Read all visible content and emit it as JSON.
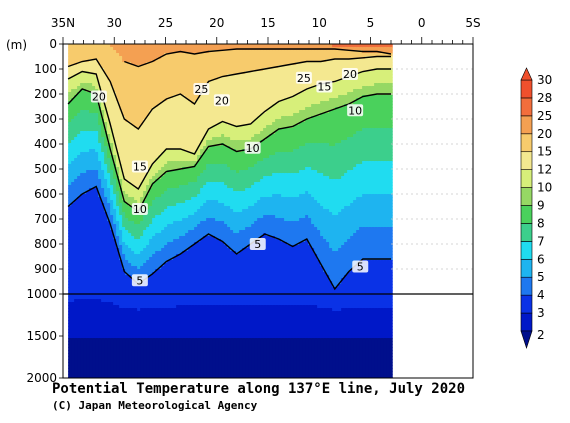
{
  "chart_data": {
    "type": "heatmap",
    "title": "Potential Temperature along 137°E line, July 2020",
    "credit": "(C) Japan Meteorological Agency",
    "ylabel": "(m)",
    "x_ticks": [
      {
        "lat": 35,
        "label": "35N"
      },
      {
        "lat": 30,
        "label": "30"
      },
      {
        "lat": 25,
        "label": "25"
      },
      {
        "lat": 20,
        "label": "20"
      },
      {
        "lat": 15,
        "label": "15"
      },
      {
        "lat": 10,
        "label": "10"
      },
      {
        "lat": 5,
        "label": "5"
      },
      {
        "lat": 0,
        "label": "0"
      },
      {
        "lat": -5,
        "label": "5S"
      }
    ],
    "y_ticks_upper": [
      {
        "depth": 0,
        "label": "0"
      },
      {
        "depth": 100,
        "label": "100"
      },
      {
        "depth": 200,
        "label": "200"
      },
      {
        "depth": 300,
        "label": "300"
      },
      {
        "depth": 400,
        "label": "400"
      },
      {
        "depth": 500,
        "label": "500"
      },
      {
        "depth": 600,
        "label": "600"
      },
      {
        "depth": 700,
        "label": "700"
      },
      {
        "depth": 800,
        "label": "800"
      },
      {
        "depth": 900,
        "label": "900"
      },
      {
        "depth": 1000,
        "label": "1000"
      }
    ],
    "y_ticks_lower": [
      {
        "depth": 1500,
        "label": "1500"
      },
      {
        "depth": 2000,
        "label": "2000"
      }
    ],
    "xlim": [
      35,
      -5
    ],
    "ylim": [
      2000,
      0
    ],
    "data_lat_range": [
      34.5,
      3
    ],
    "colorbar": {
      "levels": [
        2,
        3,
        4,
        5,
        6,
        7,
        8,
        9,
        10,
        12,
        15,
        20,
        25,
        28,
        30
      ],
      "labels": [
        "2",
        "3",
        "4",
        "5",
        "6",
        "7",
        "8",
        "9",
        "10",
        "12",
        "15",
        "20",
        "25",
        "28",
        "30"
      ],
      "colors": [
        "#000f8c",
        "#0018c8",
        "#0a32e6",
        "#1e78f0",
        "#1eb4f0",
        "#20dcf0",
        "#3ccf8c",
        "#4ad15c",
        "#96d864",
        "#d7ef7a",
        "#f4e890",
        "#f7cb6c",
        "#f4a052",
        "#f26e3c",
        "#f0502d"
      ]
    },
    "isotherms": [
      {
        "temp": 5,
        "depths": [
          650,
          600,
          570,
          720,
          910,
          960,
          920,
          870,
          840,
          800,
          760,
          790,
          840,
          800,
          760,
          780,
          810,
          780,
          880,
          980,
          910,
          860,
          860,
          860
        ]
      },
      {
        "temp": 10,
        "depths": [
          240,
          180,
          200,
          420,
          630,
          670,
          560,
          510,
          500,
          490,
          410,
          400,
          430,
          420,
          380,
          340,
          330,
          300,
          280,
          260,
          240,
          210,
          200,
          200
        ]
      },
      {
        "temp": 15,
        "depths": [
          140,
          110,
          120,
          320,
          540,
          580,
          480,
          420,
          420,
          440,
          340,
          310,
          330,
          320,
          270,
          230,
          210,
          180,
          160,
          150,
          130,
          110,
          100,
          100
        ]
      },
      {
        "temp": 20,
        "depths": [
          90,
          70,
          60,
          150,
          300,
          340,
          260,
          220,
          200,
          240,
          150,
          130,
          120,
          110,
          100,
          90,
          80,
          70,
          70,
          60,
          60,
          55,
          50,
          50
        ]
      },
      {
        "temp": 25,
        "depths": [
          null,
          null,
          null,
          null,
          70,
          90,
          70,
          40,
          30,
          40,
          30,
          25,
          20,
          20,
          20,
          20,
          20,
          20,
          20,
          20,
          25,
          30,
          30,
          40
        ]
      }
    ],
    "contour_labels": [
      {
        "text": "20",
        "lat": 31.5,
        "depth": 210
      },
      {
        "text": "25",
        "lat": 21.5,
        "depth": 180
      },
      {
        "text": "20",
        "lat": 19.5,
        "depth": 225
      },
      {
        "text": "25",
        "lat": 11.5,
        "depth": 135
      },
      {
        "text": "20",
        "lat": 7.0,
        "depth": 120
      },
      {
        "text": "15",
        "lat": 9.5,
        "depth": 170
      },
      {
        "text": "10",
        "lat": 6.5,
        "depth": 265
      },
      {
        "text": "15",
        "lat": 27.5,
        "depth": 490
      },
      {
        "text": "10",
        "lat": 27.5,
        "depth": 660
      },
      {
        "text": "10",
        "lat": 16.5,
        "depth": 415
      },
      {
        "text": "5",
        "lat": 16.0,
        "depth": 800
      },
      {
        "text": "5",
        "lat": 6.0,
        "depth": 890
      },
      {
        "text": "5",
        "lat": 27.5,
        "depth": 945
      }
    ]
  }
}
